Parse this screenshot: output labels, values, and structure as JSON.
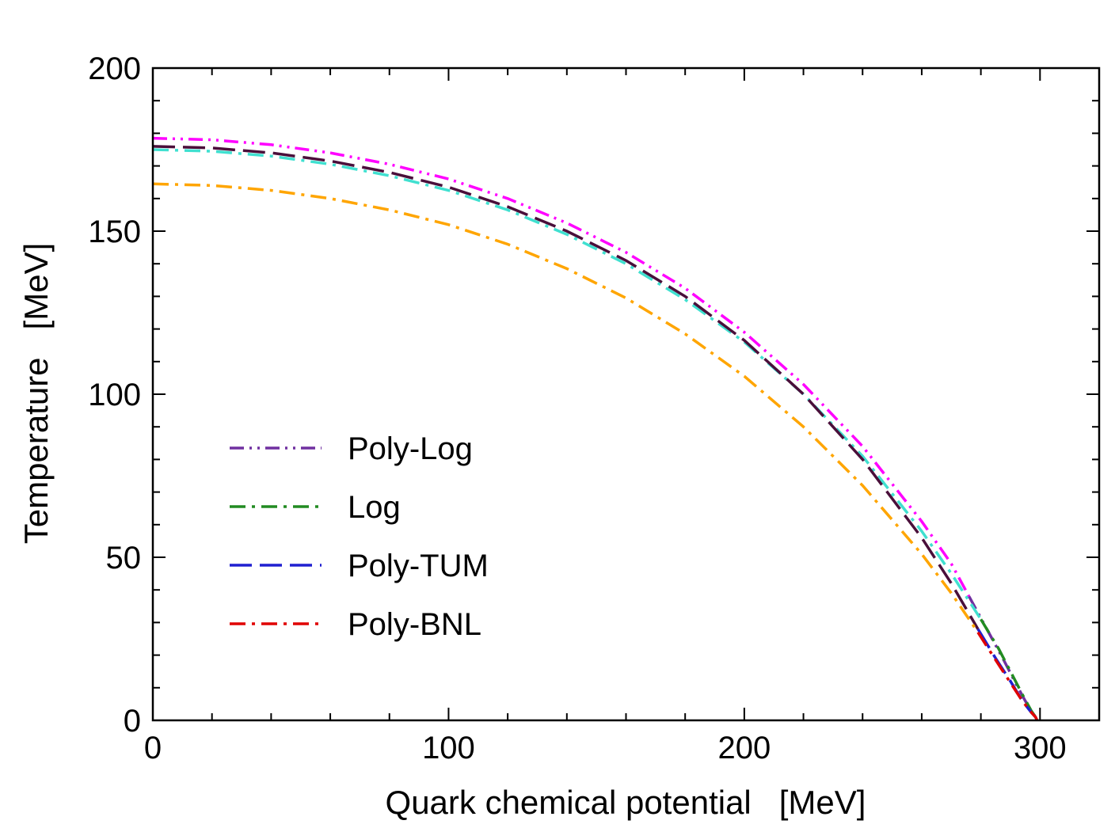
{
  "chart_data": {
    "type": "line",
    "title": "",
    "xlabel": "Quark chemical potential   [MeV]",
    "ylabel": "Temperature   [MeV]",
    "xlim": [
      0,
      320
    ],
    "ylim": [
      0,
      200
    ],
    "x_ticks": [
      0,
      100,
      200,
      300
    ],
    "y_ticks": [
      0,
      50,
      100,
      150,
      200
    ],
    "x_tick_labels": [
      "0",
      "100",
      "200",
      "300"
    ],
    "y_tick_labels": [
      "0",
      "50",
      "100",
      "150",
      "200"
    ],
    "legend_position": "lower-left",
    "series": [
      {
        "name": "Poly-Log",
        "style": "dash-dot-dot",
        "colors": [
          "#ff00ff",
          "#7030a0"
        ],
        "color_switch_x": 276,
        "x": [
          0,
          20,
          40,
          60,
          80,
          100,
          120,
          140,
          160,
          180,
          200,
          220,
          240,
          260,
          270,
          276,
          282,
          288,
          292,
          295,
          297,
          298.5,
          299
        ],
        "y": [
          178.5,
          178,
          176.5,
          174,
          170.5,
          166,
          160,
          152.5,
          143.5,
          132.5,
          119,
          103,
          84,
          61,
          48,
          38,
          28,
          18,
          11,
          6,
          3,
          1,
          0
        ]
      },
      {
        "name": "Log",
        "style": "dash-dot",
        "colors": [
          "#40e0d0",
          "#228b22"
        ],
        "color_switch_x": 280,
        "x": [
          0,
          20,
          40,
          60,
          80,
          100,
          120,
          140,
          160,
          180,
          200,
          220,
          240,
          260,
          270,
          280,
          286,
          290,
          294,
          297,
          298.5,
          299
        ],
        "y": [
          175,
          174.5,
          173,
          170.5,
          167,
          162.5,
          156.5,
          149,
          140,
          129,
          116,
          100,
          81,
          58,
          45,
          31,
          22,
          15,
          8,
          3,
          1,
          0
        ]
      },
      {
        "name": "Poly-TUM",
        "style": "long-dash",
        "colors": [
          "#4a0f3a",
          "#1f1fd0"
        ],
        "color_switch_x": 279,
        "x": [
          0,
          20,
          40,
          60,
          80,
          100,
          120,
          140,
          160,
          180,
          200,
          220,
          240,
          260,
          270,
          279,
          285,
          290,
          294,
          297,
          298.5,
          299
        ],
        "y": [
          176,
          175.5,
          174,
          171.5,
          168,
          163.5,
          157.5,
          150,
          141,
          130,
          116.5,
          100,
          80,
          56,
          42,
          28,
          19,
          12,
          6,
          2.5,
          1,
          0
        ]
      },
      {
        "name": "Poly-BNL",
        "style": "dash-dot",
        "colors": [
          "#ffa500",
          "#e00000"
        ],
        "color_switch_x": 279,
        "x": [
          0,
          20,
          40,
          60,
          80,
          100,
          120,
          140,
          160,
          180,
          200,
          220,
          240,
          260,
          270,
          279,
          285,
          290,
          294,
          297,
          298.5,
          299
        ],
        "y": [
          164.5,
          164,
          162.5,
          160,
          156.5,
          152,
          146,
          138.5,
          129.5,
          118.5,
          105.5,
          90,
          72,
          51,
          39,
          27,
          18.5,
          11.5,
          6,
          2.5,
          1,
          0
        ]
      }
    ]
  }
}
